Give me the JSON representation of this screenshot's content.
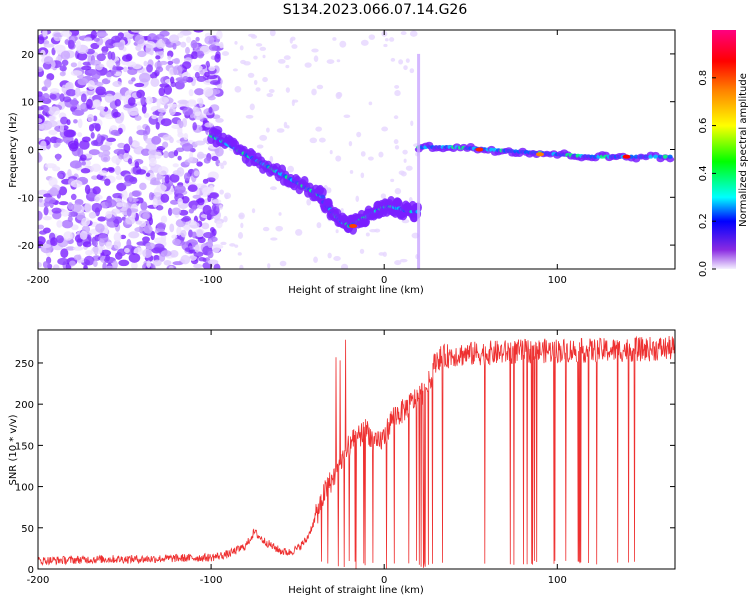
{
  "title": "S134.2023.066.07.14.G26",
  "chart_data": [
    {
      "type": "heatmap",
      "xlabel": "Height of straight line (km)",
      "ylabel": "Frequency (Hz)",
      "xlim": [
        -200,
        168
      ],
      "ylim": [
        -25,
        25
      ],
      "x_ticks": [
        -200,
        -100,
        0,
        100
      ],
      "y_ticks": [
        -20,
        -10,
        0,
        10,
        20
      ],
      "colorbar": {
        "label": "Normalized spectral amplitude",
        "range": [
          0,
          1
        ],
        "ticks": [
          0.0,
          0.2,
          0.4,
          0.6,
          0.8
        ]
      },
      "ridge": {
        "segments": [
          {
            "x": [
              -100,
              -90,
              -80,
              -70,
              -60,
              -50,
              -40,
              -35
            ],
            "y": [
              3,
              1,
              -1,
              -3,
              -5,
              -7,
              -9,
              -10
            ]
          },
          {
            "x": [
              -35,
              -30,
              -25,
              -20,
              -15,
              -10,
              -5,
              0,
              5,
              10,
              15,
              20
            ],
            "y": [
              -11,
              -13,
              -15,
              -16,
              -15,
              -14,
              -13,
              -12,
              -12,
              -12.5,
              -13,
              -13
            ]
          },
          {
            "x": [
              20,
              40,
              60,
              80,
              100,
              120,
              140,
              168
            ],
            "y": [
              0.5,
              0.5,
              0,
              -0.5,
              -1,
              -1.5,
              -1.5,
              -1.5
            ]
          }
        ]
      }
    },
    {
      "type": "line",
      "xlabel": "Height of straight line (km)",
      "ylabel": "SNR (10 * v/v)",
      "xlim": [
        -200,
        168
      ],
      "ylim": [
        0,
        290
      ],
      "x_ticks": [
        -200,
        -100,
        0,
        100
      ],
      "y_ticks": [
        0,
        50,
        100,
        150,
        200,
        250
      ],
      "series": [
        {
          "x": [
            -200,
            -180,
            -160,
            -140,
            -120,
            -100,
            -90,
            -80,
            -75,
            -70,
            -65,
            -60,
            -55,
            -50,
            -45,
            -40,
            -35,
            -30,
            -25,
            -20,
            -15,
            -10,
            -5,
            0,
            5,
            10,
            15,
            20,
            25,
            30,
            40,
            60,
            80,
            100,
            120,
            140,
            168
          ],
          "values": [
            10,
            11,
            12,
            12,
            13,
            14,
            18,
            28,
            45,
            35,
            28,
            22,
            20,
            25,
            35,
            60,
            90,
            110,
            130,
            150,
            160,
            170,
            150,
            160,
            185,
            190,
            200,
            210,
            220,
            255,
            260,
            262,
            264,
            265,
            265,
            266,
            268
          ]
        }
      ]
    }
  ]
}
